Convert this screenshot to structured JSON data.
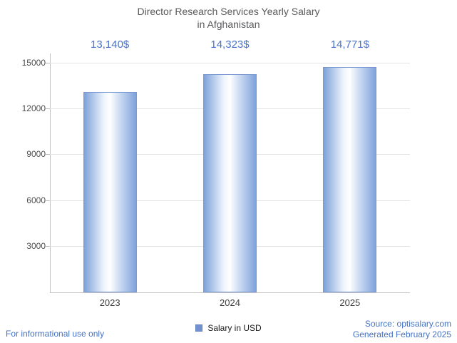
{
  "title": {
    "line1": "Director Research Services Yearly Salary",
    "line2": "in Afghanistan"
  },
  "chart_data": {
    "type": "bar",
    "title": "Director Research Services Yearly Salary in Afghanistan",
    "categories": [
      "2023",
      "2024",
      "2025"
    ],
    "values": [
      13140,
      14323,
      14771
    ],
    "value_labels": [
      "13,140$",
      "14,323$",
      "14,771$"
    ],
    "xlabel": "",
    "ylabel": "",
    "ylim": [
      0,
      15000
    ],
    "yticks": [
      3000,
      6000,
      9000,
      12000,
      15000
    ],
    "grid": true,
    "legend": [
      "Salary in USD"
    ],
    "legend_position": "bottom",
    "bar_edge_color": "#7ea2da",
    "bar_center_color": "#ffffff"
  },
  "legend": {
    "label": "Salary in USD"
  },
  "footer": {
    "left": "For informational use only",
    "source": "Source: optisalary.com",
    "generated": "Generated February 2025"
  },
  "colors": {
    "value_label_blue": "#4a74c9",
    "link_blue": "#4472c4",
    "title_gray": "#58595b"
  }
}
